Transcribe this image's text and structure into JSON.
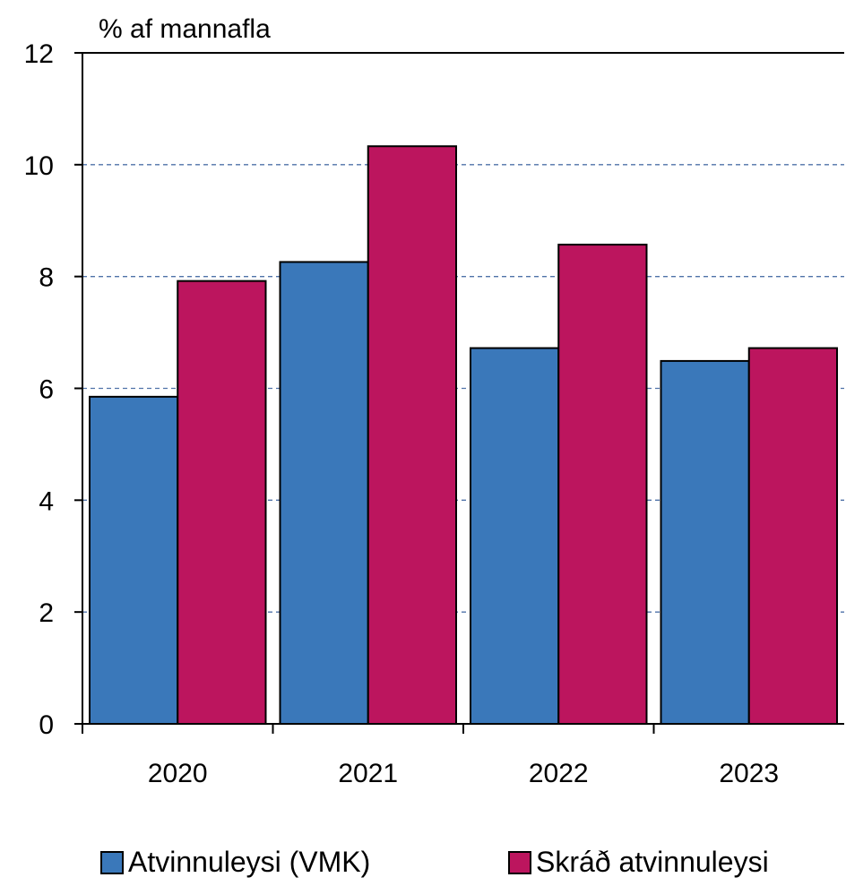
{
  "chart_data": {
    "type": "bar",
    "title": "",
    "ylabel": "% af mannafla",
    "xlabel": "",
    "categories": [
      "2020",
      "2021",
      "2022",
      "2023"
    ],
    "series": [
      {
        "name": "Atvinnuleysi (VMK)",
        "color": "#3A78BA",
        "values": [
          5.85,
          8.26,
          6.72,
          6.49
        ]
      },
      {
        "name": "Skráð atvinnuleysi",
        "color": "#BC155E",
        "values": [
          7.92,
          10.33,
          8.57,
          6.72
        ]
      }
    ],
    "ylim": [
      0,
      12
    ],
    "yticks": [
      "0",
      "2",
      "4",
      "6",
      "8",
      "10",
      "12"
    ],
    "grid": true,
    "legend_position": "bottom"
  }
}
